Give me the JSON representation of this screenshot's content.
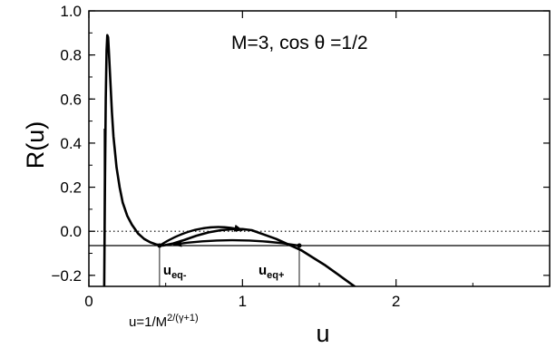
{
  "chart_data": {
    "type": "line",
    "title": "",
    "xlabel": "u",
    "ylabel": "R(u)",
    "xlim": [
      0,
      3
    ],
    "ylim": [
      -0.25,
      1.0
    ],
    "grid": false,
    "x_ticks": [
      0,
      1,
      2
    ],
    "x_tick_labels": [
      "0",
      "1",
      "2"
    ],
    "y_ticks": [
      1.0,
      0.8,
      0.6,
      0.4,
      0.2,
      0.0,
      -0.2
    ],
    "y_tick_labels": [
      "1.0",
      "0.8",
      "0.6",
      "0.4",
      "0.2",
      "0.0",
      "−0.2"
    ],
    "annotation": "M=3, cos θ =1/2",
    "series": [
      {
        "x": [
          0.1,
          0.105,
          0.11,
          0.115,
          0.12,
          0.125,
          0.13,
          0.14,
          0.15,
          0.16,
          0.18,
          0.2,
          0.22,
          0.25,
          0.28,
          0.32,
          0.36,
          0.4,
          0.44,
          0.48,
          0.55,
          0.62,
          0.7,
          0.78,
          0.86,
          0.94,
          1.0,
          1.06,
          1.14,
          1.22,
          1.3,
          1.38,
          1.46,
          1.54,
          1.62,
          1.7,
          1.74
        ],
        "values": [
          -0.25,
          0.25,
          0.6,
          0.82,
          0.89,
          0.88,
          0.82,
          0.68,
          0.54,
          0.43,
          0.29,
          0.2,
          0.13,
          0.07,
          0.03,
          -0.01,
          -0.035,
          -0.05,
          -0.06,
          -0.065,
          -0.055,
          -0.04,
          -0.02,
          -0.005,
          0.005,
          0.01,
          0.01,
          0.005,
          -0.015,
          -0.035,
          -0.06,
          -0.085,
          -0.12,
          -0.155,
          -0.195,
          -0.235,
          -0.255
        ]
      }
    ],
    "reference_lines": [
      {
        "y": 0.0,
        "style": "dotted"
      },
      {
        "y": -0.065,
        "style": "solid"
      }
    ],
    "markers": [
      {
        "x": 0.1,
        "label": "u=1/M",
        "label_sup": "2/(γ+1)"
      },
      {
        "x": 0.46,
        "y": -0.065,
        "label": "u",
        "label_sub": "eq-"
      },
      {
        "x": 1.37,
        "y": -0.065,
        "label": "u",
        "label_sub": "eq+"
      }
    ],
    "arrows": [
      {
        "from": [
          0.46,
          -0.065
        ],
        "to": [
          1.0,
          0.005
        ],
        "dir": "forward"
      },
      {
        "from": [
          1.37,
          -0.065
        ],
        "to": [
          0.55,
          -0.06
        ],
        "dir": "backward"
      }
    ]
  }
}
